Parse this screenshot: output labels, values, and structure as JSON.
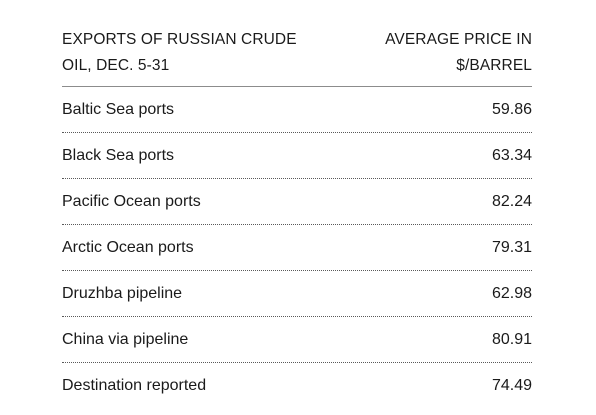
{
  "chart_data": {
    "type": "table",
    "columns": [
      "EXPORTS OF RUSSIAN CRUDE OIL, DEC. 5-31",
      "AVERAGE PRICE IN $/BARREL"
    ],
    "rows": [
      {
        "label": "Baltic Sea ports",
        "value": "59.86"
      },
      {
        "label": "Black Sea ports",
        "value": "63.34"
      },
      {
        "label": "Pacific Ocean ports",
        "value": "82.24"
      },
      {
        "label": "Arctic Ocean ports",
        "value": "79.31"
      },
      {
        "label": "Druzhba pipeline",
        "value": "62.98"
      },
      {
        "label": "China via pipeline",
        "value": "80.91"
      },
      {
        "label": "Destination reported",
        "value": "74.49"
      }
    ]
  }
}
